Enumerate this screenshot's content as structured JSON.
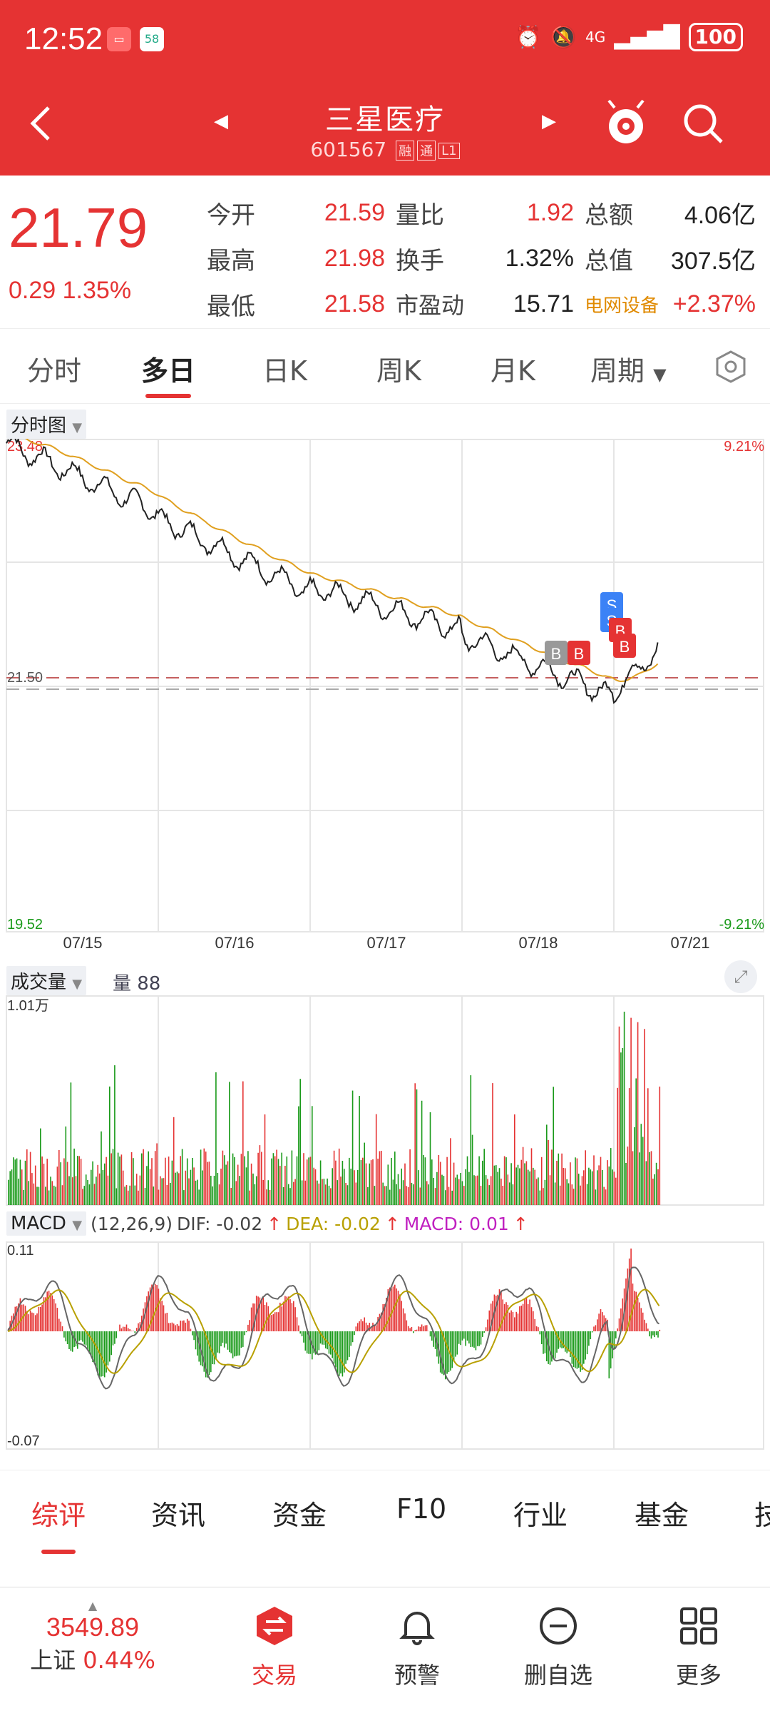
{
  "status": {
    "time": "12:52",
    "battery": "100",
    "network": "4G"
  },
  "header": {
    "stock_name": "三星医疗",
    "stock_code": "601567",
    "tags": [
      "融",
      "通",
      "L1"
    ]
  },
  "quote": {
    "price": "21.79",
    "change": "0.29",
    "change_pct": "1.35%",
    "rows": [
      [
        {
          "label": "今开",
          "value": "21.59",
          "cls": "red"
        },
        {
          "label": "量比",
          "value": "1.92",
          "cls": "red"
        },
        {
          "label": "总额",
          "value": "4.06亿",
          "cls": "dark"
        }
      ],
      [
        {
          "label": "最高",
          "value": "21.98",
          "cls": "red"
        },
        {
          "label": "换手",
          "value": "1.32%",
          "cls": "dark"
        },
        {
          "label": "总值",
          "value": "307.5亿",
          "cls": "dark"
        }
      ],
      [
        {
          "label": "最低",
          "value": "21.58",
          "cls": "red"
        },
        {
          "label": "市盈动",
          "value": "15.71",
          "cls": "dark"
        },
        {
          "label": "电网设备",
          "value": "+2.37%",
          "cls": "red"
        }
      ]
    ]
  },
  "period_tabs": [
    "分时",
    "多日",
    "日K",
    "周K",
    "月K",
    "周期"
  ],
  "active_period": "多日",
  "chart": {
    "mode_label": "分时图",
    "y_top": "23.48",
    "y_mid": "21.50",
    "y_bottom": "19.52",
    "pct_top": "9.21%",
    "pct_bottom": "-9.21%",
    "dates": [
      "07/15",
      "07/16",
      "07/17",
      "07/18",
      "07/21"
    ],
    "markers": [
      "B",
      "B",
      "S",
      "S",
      "B",
      "B"
    ]
  },
  "volume": {
    "label": "成交量",
    "vol_text": "量 88",
    "max": "1.01万"
  },
  "macd": {
    "label": "MACD",
    "params": "(12,26,9)",
    "dif": "DIF: -0.02",
    "dea": "DEA: -0.02",
    "macd": "MACD: 0.01",
    "top": "0.11",
    "bottom": "-0.07"
  },
  "chart_data": [
    {
      "type": "line",
      "title": "",
      "x": [
        "07/15",
        "07/16",
        "07/17",
        "07/18",
        "07/21"
      ],
      "series": [
        {
          "name": "",
          "values": [
            22.9,
            22.25,
            21.95,
            21.42,
            21.79
          ]
        }
      ],
      "ylim": [
        19.52,
        23.48
      ]
    }
  ],
  "bottom_tabs": [
    "综评",
    "资讯",
    "资金",
    "F10",
    "行业",
    "基金",
    "技"
  ],
  "nav": {
    "index_value": "3549.89",
    "index_name": "上证",
    "index_pct": "0.44%",
    "items": [
      "交易",
      "预警",
      "删自选",
      "更多"
    ]
  },
  "colors": {
    "up": "#e53333",
    "down": "#1a9a1a",
    "avg": "#e0a020",
    "header": "#e53333"
  }
}
